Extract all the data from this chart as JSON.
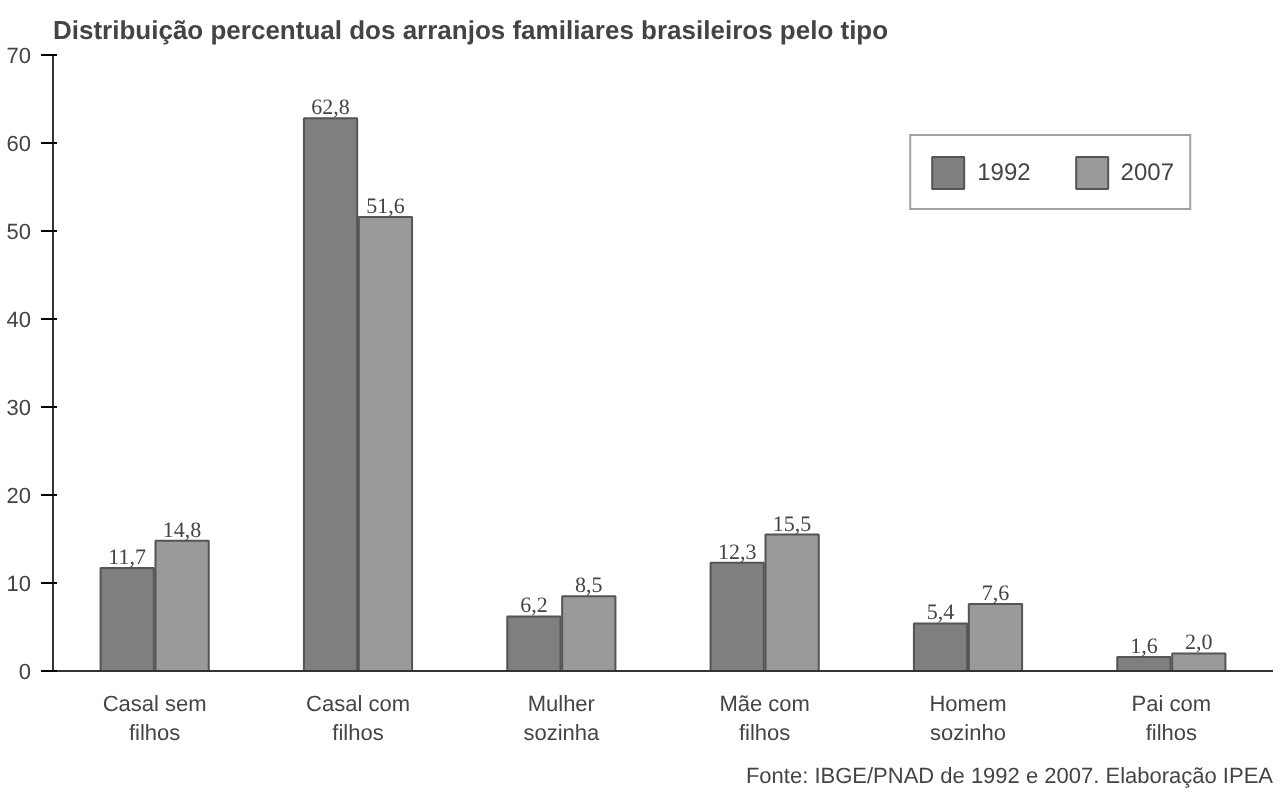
{
  "chart_data": {
    "type": "bar",
    "title": "Distribuição percentual dos arranjos familiares brasileiros pelo tipo",
    "categories": [
      "Casal sem\nfilhos",
      "Casal com\nfilhos",
      "Mulher\nsozinha",
      "Mãe com\nfilhos",
      "Homem\nsozinho",
      "Pai com\nfilhos"
    ],
    "series": [
      {
        "name": "1992",
        "color": "#7f7f7f",
        "values": [
          11.7,
          62.8,
          6.2,
          12.3,
          5.4,
          1.6
        ],
        "value_labels": [
          "11,7",
          "62,8",
          "6,2",
          "12,3",
          "5,4",
          "1,6"
        ]
      },
      {
        "name": "2007",
        "color": "#9a9a9a",
        "values": [
          14.8,
          51.6,
          8.5,
          15.5,
          7.6,
          2.0
        ],
        "value_labels": [
          "14,8",
          "51,6",
          "8,5",
          "15,5",
          "7,6",
          "2,0"
        ]
      }
    ],
    "ylim": [
      0,
      70
    ],
    "yticks": [
      0,
      10,
      20,
      30,
      40,
      50,
      60,
      70
    ],
    "grid": false,
    "legend": "top right",
    "annotations": [
      "Fonte: IBGE/PNAD de 1992 e 2007. Elaboração IPEA"
    ]
  }
}
